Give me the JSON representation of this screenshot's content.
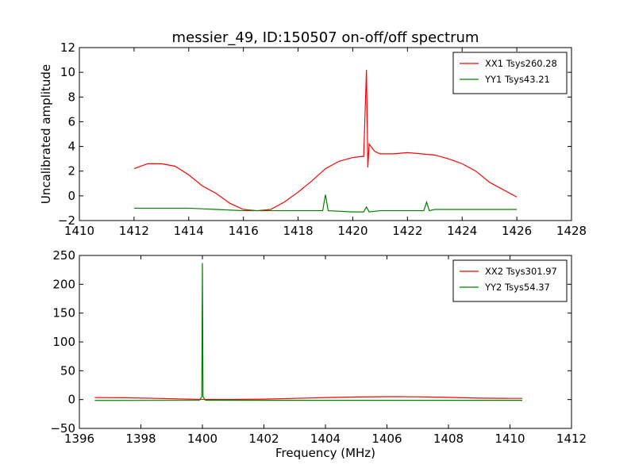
{
  "chart_data": [
    {
      "type": "line",
      "title": "messier_49, ID:150507 on-off/off spectrum",
      "xlabel": "",
      "ylabel": "Uncalibrated amplitude",
      "xlim": [
        1410,
        1428
      ],
      "ylim": [
        -2,
        12
      ],
      "xticks": [
        1410,
        1412,
        1414,
        1416,
        1418,
        1420,
        1422,
        1424,
        1426,
        1428
      ],
      "yticks": [
        -2,
        0,
        2,
        4,
        6,
        8,
        10,
        12
      ],
      "legend_position": "top-right",
      "series": [
        {
          "name": "XX1 Tsys260.28",
          "color": "#ff0000",
          "x": [
            1412.0,
            1412.5,
            1413.0,
            1413.5,
            1414.0,
            1414.5,
            1415.0,
            1415.5,
            1416.0,
            1416.5,
            1417.0,
            1417.5,
            1418.0,
            1418.5,
            1419.0,
            1419.5,
            1420.0,
            1420.4,
            1420.5,
            1420.55,
            1420.6,
            1420.8,
            1421.0,
            1421.5,
            1422.0,
            1422.5,
            1423.0,
            1423.5,
            1424.0,
            1424.5,
            1425.0,
            1425.5,
            1426.0
          ],
          "y": [
            2.2,
            2.6,
            2.6,
            2.4,
            1.7,
            0.8,
            0.2,
            -0.6,
            -1.1,
            -1.2,
            -1.1,
            -0.5,
            0.3,
            1.2,
            2.2,
            2.8,
            3.1,
            3.2,
            10.2,
            2.3,
            4.2,
            3.6,
            3.4,
            3.4,
            3.5,
            3.4,
            3.3,
            3.0,
            2.6,
            2.0,
            1.1,
            0.5,
            -0.1
          ]
        },
        {
          "name": "YY1 Tsys43.21",
          "color": "#008000",
          "x": [
            1412.0,
            1413.0,
            1414.0,
            1415.0,
            1416.0,
            1417.0,
            1418.0,
            1418.9,
            1419.0,
            1419.1,
            1420.0,
            1420.4,
            1420.5,
            1420.6,
            1421.0,
            1422.0,
            1422.6,
            1422.7,
            1422.8,
            1423.0,
            1424.0,
            1425.0,
            1426.0
          ],
          "y": [
            -1.0,
            -1.0,
            -1.0,
            -1.1,
            -1.2,
            -1.2,
            -1.2,
            -1.2,
            0.1,
            -1.2,
            -1.3,
            -1.3,
            -0.9,
            -1.3,
            -1.2,
            -1.2,
            -1.2,
            -0.5,
            -1.2,
            -1.1,
            -1.1,
            -1.1,
            -1.1
          ]
        }
      ]
    },
    {
      "type": "line",
      "title": "",
      "xlabel": "Frequency (MHz)",
      "ylabel": "",
      "xlim": [
        1396,
        1412
      ],
      "ylim": [
        -50,
        250
      ],
      "xticks": [
        1396,
        1398,
        1400,
        1402,
        1404,
        1406,
        1408,
        1410,
        1412
      ],
      "yticks": [
        -50,
        0,
        50,
        100,
        150,
        200,
        250
      ],
      "legend_position": "top-right",
      "series": [
        {
          "name": "XX2 Tsys301.97",
          "color": "#ff0000",
          "x": [
            1396.5,
            1397.5,
            1398.5,
            1399.5,
            1400.0,
            1401.0,
            1402.0,
            1403.0,
            1404.0,
            1405.0,
            1406.0,
            1406.5,
            1407.0,
            1408.0,
            1409.0,
            1410.0,
            1410.4
          ],
          "y": [
            3.5,
            3.2,
            2.0,
            0.8,
            0.3,
            0.3,
            0.8,
            2.0,
            3.5,
            4.5,
            5.0,
            5.0,
            4.8,
            3.8,
            2.5,
            2.0,
            2.0
          ]
        },
        {
          "name": "YY2 Tsys54.37",
          "color": "#008000",
          "x": [
            1396.5,
            1399.9,
            1399.98,
            1400.0,
            1400.02,
            1400.1,
            1403.0,
            1406.0,
            1410.4
          ],
          "y": [
            -1.5,
            -1.2,
            5.0,
            237.0,
            5.0,
            -1.2,
            -1.3,
            -1.3,
            -1.3
          ]
        }
      ]
    }
  ]
}
